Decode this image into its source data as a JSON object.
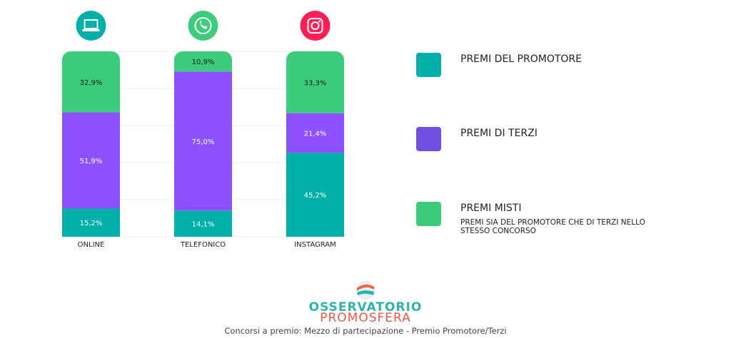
{
  "chart_data": {
    "type": "bar",
    "stacked": true,
    "categories": [
      "ONLINE",
      "TELEFONICO",
      "INSTAGRAM"
    ],
    "category_icons": [
      "laptop-icon",
      "whatsapp-icon",
      "instagram-icon"
    ],
    "category_icon_colors": [
      "#00b0a8",
      "#3ccc7c",
      "#ff1e56"
    ],
    "series": [
      {
        "name": "PREMI DEL PROMOTORE",
        "values": [
          15.2,
          14.1,
          45.2
        ],
        "labels": [
          "15,2%",
          "14,1%",
          "45,2%"
        ],
        "color": "#00b0a8"
      },
      {
        "name": "PREMI DI TERZI",
        "values": [
          51.9,
          75.0,
          21.4
        ],
        "labels": [
          "51,9%",
          "75,0%",
          "21,4%"
        ],
        "color": "#8c52ff"
      },
      {
        "name": "PREMI MISTI",
        "values": [
          32.9,
          10.9,
          33.3
        ],
        "labels": [
          "32,9%",
          "10,9%",
          "33,3%"
        ],
        "color": "#3ccc7c"
      }
    ],
    "ylim": [
      0,
      100
    ],
    "grid": true,
    "legend_placement": "right"
  },
  "legend": {
    "items": [
      {
        "label": "PREMI DEL PROMOTORE",
        "color": "#00b0a8"
      },
      {
        "label": "PREMI DI TERZI",
        "color": "#6f4fe0"
      },
      {
        "label": "PREMI MISTI",
        "color": "#3ccc7c",
        "sub": "PREMI SIA DEL PROMOTORE CHE DI TERZI NELLO STESSO CONCORSO"
      }
    ]
  },
  "footer": {
    "logo_top": "OSSERVATORIO",
    "logo_bottom": "PROMOSFERA",
    "caption": "Concorsi a premio: Mezzo di partecipazione - Premio Promotore/Terzi"
  }
}
